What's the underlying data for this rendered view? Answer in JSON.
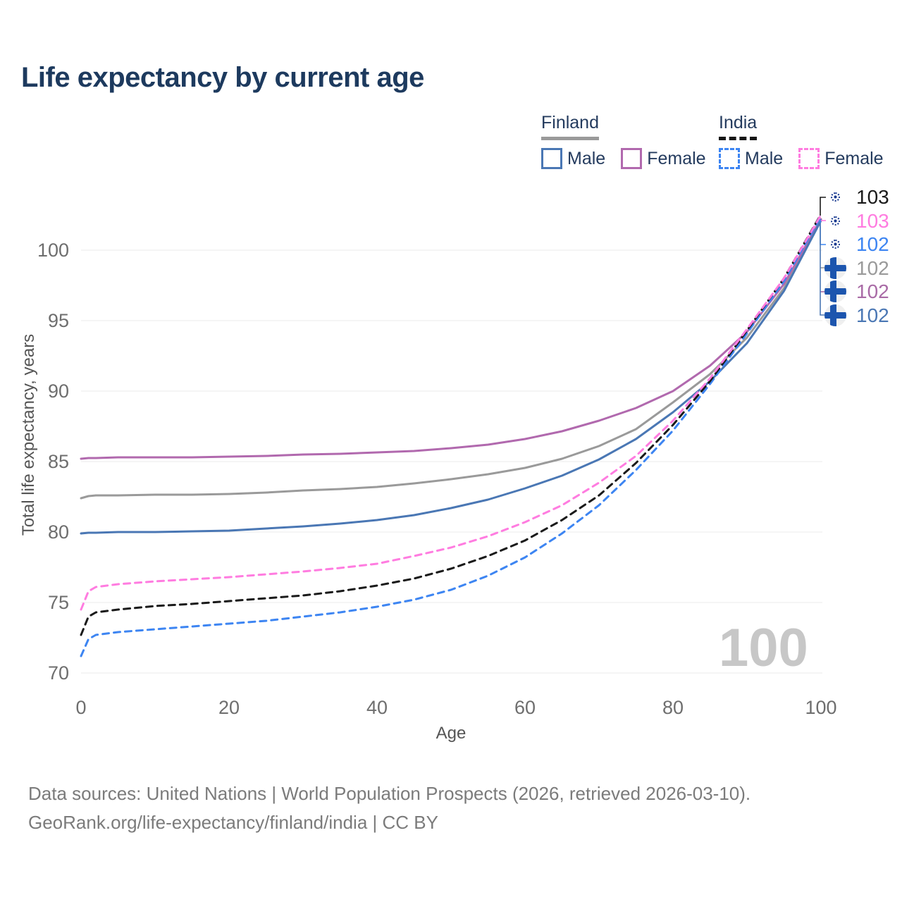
{
  "title": "Life expectancy by current age",
  "watermark": "100",
  "legend": {
    "groups": [
      {
        "label": "Finland",
        "line_style": "solid",
        "underline_color": "#9a9a9a",
        "items": [
          {
            "label": "Male",
            "color": "#4a77b4"
          },
          {
            "label": "Female",
            "color": "#b169ae"
          }
        ]
      },
      {
        "label": "India",
        "line_style": "dashed",
        "underline_color": "#151515",
        "items": [
          {
            "label": "Male",
            "color": "#3d85f2"
          },
          {
            "label": "Female",
            "color": "#ff7ce0"
          }
        ]
      }
    ]
  },
  "end_labels": [
    {
      "flag": "india",
      "series": "India Both sexes",
      "value": "103",
      "color": "#1a1a1a"
    },
    {
      "flag": "india",
      "series": "India Female",
      "value": "103",
      "color": "#ff7ce0"
    },
    {
      "flag": "india",
      "series": "India Male",
      "value": "102",
      "color": "#3d85f2"
    },
    {
      "flag": "finland",
      "series": "Finland Both sexes",
      "value": "102",
      "color": "#9a9a9a"
    },
    {
      "flag": "finland",
      "series": "Finland Female",
      "value": "102",
      "color": "#a96ba6"
    },
    {
      "flag": "finland",
      "series": "Finland Male",
      "value": "102",
      "color": "#4a77b4"
    }
  ],
  "footer": {
    "line1": "Data sources: United Nations | World Population Prospects (2026, retrieved 2026-03-10).",
    "line2": "GeoRank.org/life-expectancy/finland/india | CC BY"
  },
  "chart_data": {
    "type": "line",
    "title": "Life expectancy by current age",
    "xlabel": "Age",
    "ylabel": "Total life expectancy, years",
    "xlim": [
      0,
      100
    ],
    "ylim": [
      70,
      103
    ],
    "xticks": [
      0,
      20,
      40,
      60,
      80,
      100
    ],
    "yticks": [
      70,
      75,
      80,
      85,
      90,
      95,
      100
    ],
    "grid": "horizontal",
    "legend_position": "top-right",
    "ages": [
      0,
      1,
      2,
      5,
      10,
      15,
      20,
      25,
      30,
      35,
      40,
      45,
      50,
      55,
      60,
      65,
      70,
      75,
      80,
      85,
      90,
      95,
      100
    ],
    "series": [
      {
        "name": "Finland Both sexes",
        "country": "Finland",
        "group": "Both sexes",
        "color": "#9a9a9a",
        "dash": "solid",
        "values": [
          82.4,
          82.55,
          82.6,
          82.6,
          82.65,
          82.65,
          82.7,
          82.8,
          82.95,
          83.05,
          83.2,
          83.45,
          83.75,
          84.1,
          84.55,
          85.2,
          86.1,
          87.3,
          89.2,
          91.2,
          93.8,
          97.3,
          102.15
        ]
      },
      {
        "name": "Finland Female",
        "country": "Finland",
        "group": "Female",
        "color": "#b169ae",
        "dash": "solid",
        "values": [
          85.2,
          85.25,
          85.25,
          85.3,
          85.3,
          85.3,
          85.35,
          85.4,
          85.5,
          85.55,
          85.65,
          85.75,
          85.95,
          86.2,
          86.6,
          87.15,
          87.9,
          88.8,
          90.0,
          91.8,
          94.2,
          97.6,
          102.2
        ]
      },
      {
        "name": "Finland Male",
        "country": "Finland",
        "group": "Male",
        "color": "#4a77b4",
        "dash": "solid",
        "values": [
          79.9,
          79.95,
          79.95,
          80.0,
          80.0,
          80.05,
          80.1,
          80.25,
          80.4,
          80.6,
          80.85,
          81.2,
          81.7,
          82.3,
          83.1,
          84.0,
          85.15,
          86.6,
          88.5,
          90.7,
          93.4,
          97.1,
          102.1
        ]
      },
      {
        "name": "India Male",
        "country": "India",
        "group": "Male",
        "color": "#3d85f2",
        "dash": "dashed",
        "values": [
          71.2,
          72.4,
          72.7,
          72.9,
          73.1,
          73.3,
          73.5,
          73.7,
          74.0,
          74.3,
          74.7,
          75.2,
          75.9,
          76.9,
          78.2,
          79.9,
          81.9,
          84.4,
          87.2,
          90.5,
          94.1,
          97.8,
          102.4
        ]
      },
      {
        "name": "India Both sexes",
        "country": "India",
        "group": "Both sexes",
        "color": "#1a1a1a",
        "dash": "dashed",
        "values": [
          72.7,
          74.0,
          74.3,
          74.5,
          74.75,
          74.9,
          75.1,
          75.3,
          75.5,
          75.8,
          76.2,
          76.7,
          77.4,
          78.3,
          79.4,
          80.85,
          82.6,
          84.9,
          87.6,
          90.7,
          94.3,
          98.0,
          102.55
        ]
      },
      {
        "name": "India Female",
        "country": "India",
        "group": "Female",
        "color": "#ff7ce0",
        "dash": "dashed",
        "values": [
          74.5,
          75.8,
          76.1,
          76.3,
          76.5,
          76.65,
          76.8,
          77.0,
          77.2,
          77.45,
          77.75,
          78.3,
          78.9,
          79.7,
          80.7,
          81.9,
          83.5,
          85.4,
          87.9,
          90.9,
          94.4,
          98.0,
          102.5
        ]
      }
    ]
  }
}
